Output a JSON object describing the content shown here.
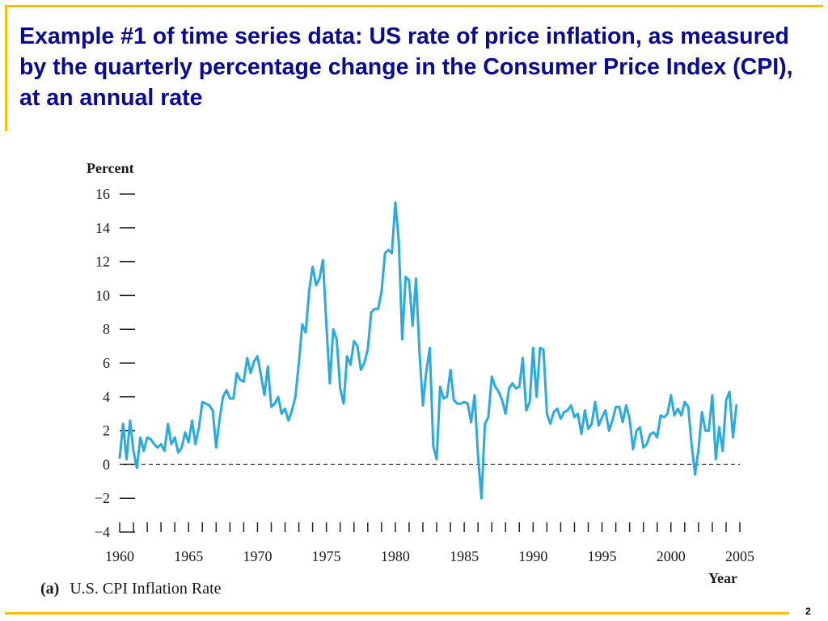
{
  "slide": {
    "title": "Example #1 of time series data: US rate of price inflation, as measured by the quarterly percentage change in the Consumer Price Index (CPI), at an annual rate",
    "page_number": "2",
    "rule_color": "#f2c200",
    "title_color": "#0a0a96"
  },
  "chart_data": {
    "type": "line",
    "ylabel": "Percent",
    "xlabel": "Year",
    "caption_tag": "(a)",
    "caption_text": "U.S. CPI Inflation Rate",
    "ylim": [
      -4,
      16
    ],
    "xlim": [
      1960,
      2005
    ],
    "y_ticks": [
      16,
      14,
      12,
      10,
      8,
      6,
      4,
      2,
      0,
      -2,
      -4
    ],
    "y_tick_labels": [
      "16",
      "14",
      "12",
      "10",
      "8",
      "6",
      "4",
      "2",
      "0",
      "−2",
      "−4"
    ],
    "x_ticks": [
      1960,
      1965,
      1970,
      1975,
      1980,
      1985,
      1990,
      1995,
      2000,
      2005
    ],
    "x_tick_labels": [
      "1960",
      "1965",
      "1970",
      "1975",
      "1980",
      "1985",
      "1990",
      "1995",
      "2000",
      "2005"
    ],
    "minor_x_step": 1,
    "reference_line": 0,
    "line_color": "#29abe2",
    "series": [
      {
        "x": [
          1960.0,
          1960.25,
          1960.5,
          1960.75,
          1961.0,
          1961.25,
          1961.5,
          1961.75,
          1962.0,
          1962.25,
          1962.5,
          1962.75,
          1963.0,
          1963.25,
          1963.5,
          1963.75,
          1964.0,
          1964.25,
          1964.5,
          1964.75,
          1965.0,
          1965.25,
          1965.5,
          1965.75,
          1966.0,
          1966.25,
          1966.5,
          1966.75,
          1967.0,
          1967.25,
          1967.5,
          1967.75,
          1968.0,
          1968.25,
          1968.5,
          1968.75,
          1969.0,
          1969.25,
          1969.5,
          1969.75,
          1970.0,
          1970.25,
          1970.5,
          1970.75,
          1971.0,
          1971.25,
          1971.5,
          1971.75,
          1972.0,
          1972.25,
          1972.5,
          1972.75,
          1973.0,
          1973.25,
          1973.5,
          1973.75,
          1974.0,
          1974.25,
          1974.5,
          1974.75,
          1975.0,
          1975.25,
          1975.5,
          1975.75,
          1976.0,
          1976.25,
          1976.5,
          1976.75,
          1977.0,
          1977.25,
          1977.5,
          1977.75,
          1978.0,
          1978.25,
          1978.5,
          1978.75,
          1979.0,
          1979.25,
          1979.5,
          1979.75,
          1980.0,
          1980.25,
          1980.5,
          1980.75,
          1981.0,
          1981.25,
          1981.5,
          1981.75,
          1982.0,
          1982.25,
          1982.5,
          1982.75,
          1983.0,
          1983.25,
          1983.5,
          1983.75,
          1984.0,
          1984.25,
          1984.5,
          1984.75,
          1985.0,
          1985.25,
          1985.5,
          1985.75,
          1986.0,
          1986.25,
          1986.5,
          1986.75,
          1987.0,
          1987.25,
          1987.5,
          1987.75,
          1988.0,
          1988.25,
          1988.5,
          1988.75,
          1989.0,
          1989.25,
          1989.5,
          1989.75,
          1990.0,
          1990.25,
          1990.5,
          1990.75,
          1991.0,
          1991.25,
          1991.5,
          1991.75,
          1992.0,
          1992.25,
          1992.5,
          1992.75,
          1993.0,
          1993.25,
          1993.5,
          1993.75,
          1994.0,
          1994.25,
          1994.5,
          1994.75,
          1995.0,
          1995.25,
          1995.5,
          1995.75,
          1996.0,
          1996.25,
          1996.5,
          1996.75,
          1997.0,
          1997.25,
          1997.5,
          1997.75,
          1998.0,
          1998.25,
          1998.5,
          1998.75,
          1999.0,
          1999.25,
          1999.5,
          1999.75,
          2000.0,
          2000.25,
          2000.5,
          2000.75,
          2001.0,
          2001.25,
          2001.5,
          2001.75,
          2002.0,
          2002.25,
          2002.5,
          2002.75,
          2003.0,
          2003.25,
          2003.5,
          2003.75,
          2004.0,
          2004.25,
          2004.5,
          2004.75
        ],
        "values": [
          0.4,
          2.4,
          0.3,
          2.6,
          0.8,
          -0.2,
          1.6,
          0.8,
          1.6,
          1.5,
          1.2,
          1.0,
          1.2,
          0.8,
          2.4,
          1.2,
          1.6,
          0.7,
          1.0,
          1.9,
          1.3,
          2.6,
          1.2,
          2.2,
          3.7,
          3.6,
          3.5,
          3.2,
          1.0,
          2.7,
          4.0,
          4.4,
          3.9,
          3.9,
          5.4,
          5.0,
          4.9,
          6.3,
          5.4,
          6.1,
          6.4,
          5.3,
          4.1,
          5.8,
          3.4,
          3.6,
          4.0,
          3.0,
          3.3,
          2.6,
          3.2,
          4.0,
          6.0,
          8.3,
          7.8,
          10.3,
          11.7,
          10.6,
          11.0,
          12.1,
          8.2,
          4.8,
          8.0,
          7.4,
          4.5,
          3.6,
          6.4,
          5.9,
          7.3,
          7.0,
          5.6,
          6.0,
          6.8,
          9.0,
          9.2,
          9.2,
          10.2,
          12.5,
          12.7,
          12.5,
          15.5,
          13.2,
          7.4,
          11.1,
          10.9,
          8.2,
          11.0,
          6.7,
          3.5,
          5.5,
          6.9,
          1.1,
          0.3,
          4.6,
          3.9,
          4.0,
          5.6,
          3.8,
          3.6,
          3.6,
          3.7,
          3.6,
          2.5,
          4.1,
          0.5,
          -2.0,
          2.4,
          2.8,
          5.2,
          4.6,
          4.3,
          3.8,
          3.0,
          4.5,
          4.8,
          4.5,
          4.6,
          6.3,
          3.2,
          3.7,
          6.9,
          4.0,
          6.9,
          6.8,
          3.0,
          2.4,
          3.1,
          3.3,
          2.7,
          3.1,
          3.2,
          3.5,
          2.8,
          3.0,
          1.8,
          3.2,
          2.1,
          2.4,
          3.7,
          2.3,
          2.8,
          3.2,
          2.0,
          2.6,
          3.4,
          3.4,
          2.5,
          3.5,
          2.7,
          0.9,
          2.0,
          2.2,
          1.0,
          1.2,
          1.8,
          1.9,
          1.6,
          2.9,
          2.8,
          3.0,
          4.1,
          2.9,
          3.3,
          2.9,
          3.7,
          3.4,
          1.2,
          -0.6,
          0.9,
          3.1,
          2.0,
          2.0,
          4.1,
          0.3,
          2.2,
          0.8,
          3.8,
          4.3,
          1.6,
          3.5
        ]
      }
    ]
  }
}
